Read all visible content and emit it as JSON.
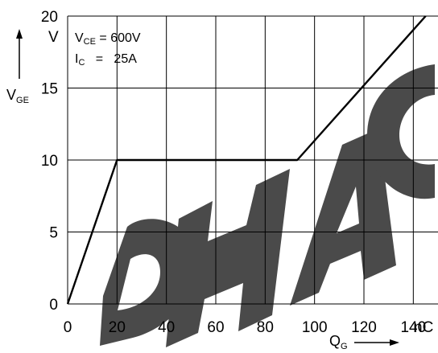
{
  "chart_data": {
    "type": "line",
    "x": [
      0,
      20,
      93,
      145
    ],
    "series": [
      {
        "values": [
          0,
          10,
          10,
          20
        ]
      }
    ],
    "xlim": [
      0,
      150
    ],
    "ylim": [
      0,
      20
    ],
    "x_ticks": [
      "0",
      "20",
      "40",
      "60",
      "80",
      "100",
      "120",
      "140"
    ],
    "x_unit": "nC",
    "y_ticks": [
      "0",
      "5",
      "10",
      "15",
      "20"
    ],
    "y_unit": "V",
    "xlabel": {
      "main": "Q",
      "sub": "G"
    },
    "ylabel": {
      "main": "V",
      "sub": "GE"
    },
    "annotation": {
      "line1": {
        "main": "V",
        "sub": "CE",
        "text": " = 600V"
      },
      "line2": {
        "main": "I",
        "sub": "C",
        "text": "   =   25A"
      }
    },
    "grid": true,
    "watermark_text": "DHAC"
  }
}
